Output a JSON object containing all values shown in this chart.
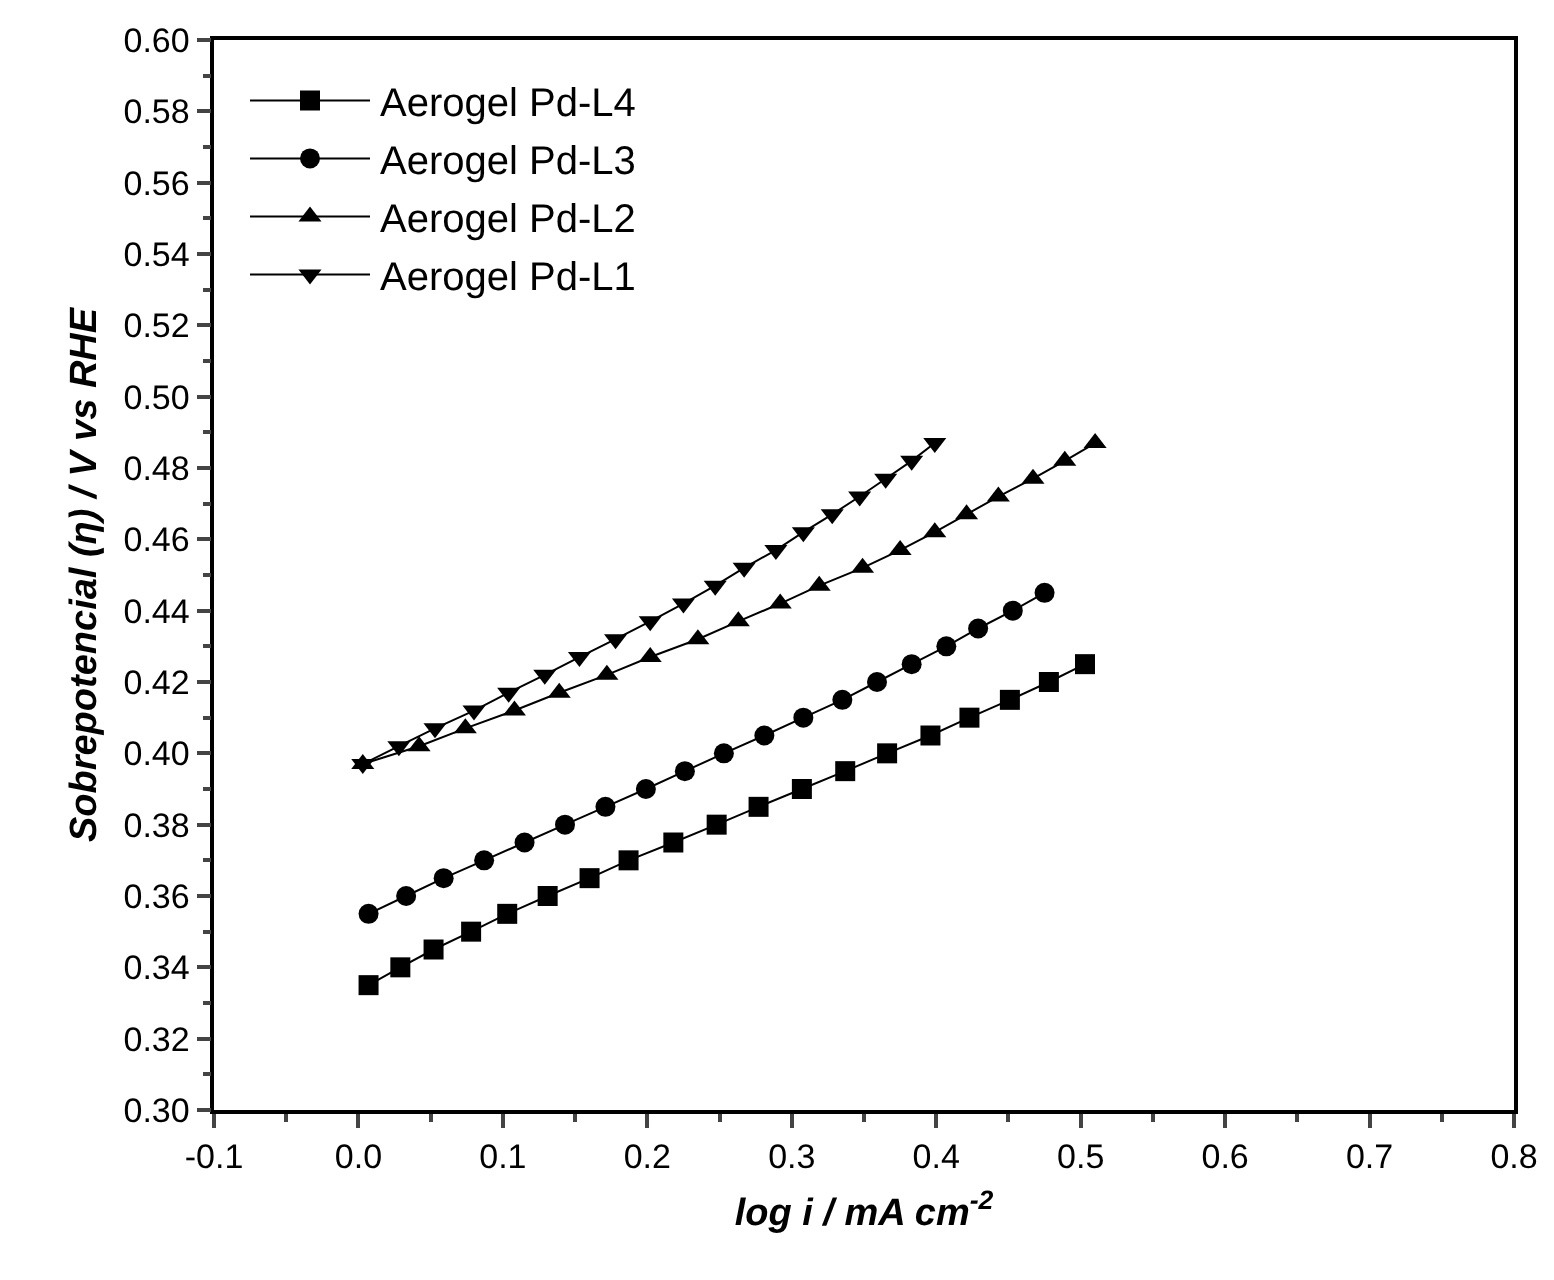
{
  "chart_data": {
    "type": "line",
    "xlabel": "log i / mA cm$^{-2}$",
    "ylabel": "Sobrepotencial (η) / V vs RHE",
    "xlim": [
      -0.1,
      0.8
    ],
    "ylim": [
      0.3,
      0.6
    ],
    "xticks": [
      {
        "value": -0.1,
        "label": "-0.1"
      },
      {
        "value": 0,
        "label": "0.0"
      },
      {
        "value": 0.1,
        "label": "0.1"
      },
      {
        "value": 0.2,
        "label": "0.2"
      },
      {
        "value": 0.3,
        "label": "0.3"
      },
      {
        "value": 0.4,
        "label": "0.4"
      },
      {
        "value": 0.5,
        "label": "0.5"
      },
      {
        "value": 0.6,
        "label": "0.6"
      },
      {
        "value": 0.7,
        "label": "0.7"
      },
      {
        "value": 0.8,
        "label": "0.8"
      }
    ],
    "yticks": [
      {
        "value": 0.3,
        "label": "0.30"
      },
      {
        "value": 0.32,
        "label": "0.32"
      },
      {
        "value": 0.34,
        "label": "0.34"
      },
      {
        "value": 0.36,
        "label": "0.36"
      },
      {
        "value": 0.38,
        "label": "0.38"
      },
      {
        "value": 0.4,
        "label": "0.40"
      },
      {
        "value": 0.42,
        "label": "0.42"
      },
      {
        "value": 0.44,
        "label": "0.44"
      },
      {
        "value": 0.46,
        "label": "0.46"
      },
      {
        "value": 0.48,
        "label": "0.48"
      },
      {
        "value": 0.5,
        "label": "0.50"
      },
      {
        "value": 0.52,
        "label": "0.52"
      },
      {
        "value": 0.54,
        "label": "0.54"
      },
      {
        "value": 0.56,
        "label": "0.56"
      },
      {
        "value": 0.58,
        "label": "0.58"
      },
      {
        "value": 0.6,
        "label": "0.60"
      }
    ],
    "grid": false,
    "legend": "top left",
    "line_style": "solid",
    "series": [
      {
        "name": "Aerogel Pd-L4",
        "color": "#000000",
        "marker": "square",
        "x": [
          0.007,
          0.029,
          0.052,
          0.078,
          0.103,
          0.131,
          0.16,
          0.187,
          0.218,
          0.248,
          0.277,
          0.307,
          0.337,
          0.366,
          0.396,
          0.423,
          0.451,
          0.478,
          0.503
        ],
        "values": [
          0.335,
          0.34,
          0.345,
          0.35,
          0.355,
          0.36,
          0.365,
          0.37,
          0.375,
          0.38,
          0.385,
          0.39,
          0.395,
          0.4,
          0.405,
          0.41,
          0.415,
          0.42,
          0.425
        ]
      },
      {
        "name": "Aerogel Pd-L3",
        "color": "#000000",
        "marker": "circle",
        "x": [
          0.007,
          0.033,
          0.059,
          0.087,
          0.115,
          0.143,
          0.171,
          0.199,
          0.226,
          0.253,
          0.281,
          0.308,
          0.335,
          0.359,
          0.383,
          0.407,
          0.429,
          0.453,
          0.475
        ],
        "values": [
          0.355,
          0.36,
          0.365,
          0.37,
          0.375,
          0.38,
          0.385,
          0.39,
          0.395,
          0.4,
          0.405,
          0.41,
          0.415,
          0.42,
          0.425,
          0.43,
          0.435,
          0.44,
          0.445
        ]
      },
      {
        "name": "Aerogel Pd-L2",
        "color": "#000000",
        "marker": "triangle",
        "x": [
          0.003,
          0.042,
          0.074,
          0.108,
          0.139,
          0.172,
          0.202,
          0.235,
          0.263,
          0.292,
          0.319,
          0.349,
          0.375,
          0.399,
          0.421,
          0.443,
          0.467,
          0.489,
          0.51
        ],
        "values": [
          0.397,
          0.402,
          0.407,
          0.412,
          0.417,
          0.422,
          0.427,
          0.432,
          0.437,
          0.442,
          0.447,
          0.452,
          0.457,
          0.462,
          0.467,
          0.472,
          0.477,
          0.482,
          0.487
        ]
      },
      {
        "name": "Aerogel Pd-L1",
        "color": "#000000",
        "marker": "triangle-down",
        "x": [
          0.003,
          0.028,
          0.053,
          0.08,
          0.104,
          0.129,
          0.153,
          0.178,
          0.202,
          0.225,
          0.247,
          0.267,
          0.289,
          0.308,
          0.328,
          0.347,
          0.365,
          0.383,
          0.399
        ],
        "values": [
          0.397,
          0.402,
          0.407,
          0.412,
          0.417,
          0.422,
          0.427,
          0.432,
          0.437,
          0.442,
          0.447,
          0.452,
          0.457,
          0.462,
          0.467,
          0.472,
          0.477,
          0.482,
          0.487
        ]
      }
    ]
  }
}
